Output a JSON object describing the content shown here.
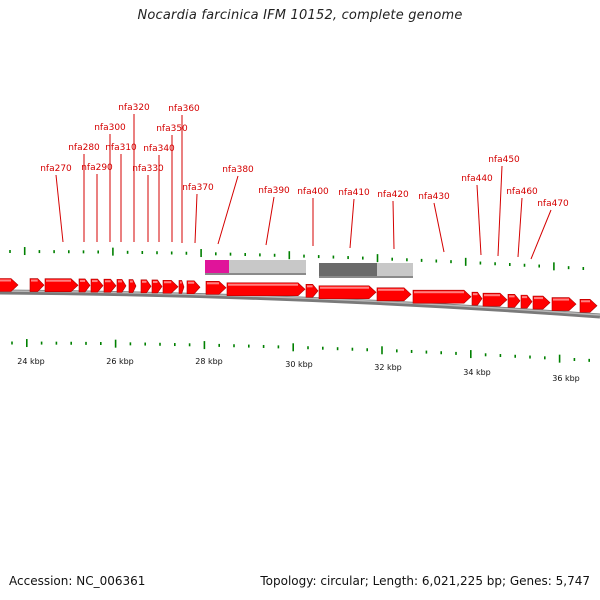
{
  "title": "Nocardia farcinica IFM 10152, complete genome",
  "footer": {
    "accession": "Accession: NC_006361",
    "info": "Topology: circular; Length: 6,021,225 bp; Genes: 5,747"
  },
  "colors": {
    "gene": "#ff0000",
    "label": "#d40000",
    "tick": "#008000",
    "backbone": "#8c8c8c",
    "feature_magenta": "#e0149a",
    "feature_dark": "#6a6a6a",
    "feature_light": "#c8c8c8"
  },
  "scale_labels": [
    "24 kbp",
    "26 kbp",
    "28 kbp",
    "30 kbp",
    "32 kbp",
    "34 kbp",
    "36 kbp"
  ],
  "gene_labels": [
    "nfa270",
    "nfa280",
    "nfa290",
    "nfa300",
    "nfa310",
    "nfa320",
    "nfa330",
    "nfa340",
    "nfa350",
    "nfa360",
    "nfa370",
    "nfa380",
    "nfa390",
    "nfa400",
    "nfa410",
    "nfa420",
    "nfa430",
    "nfa440",
    "nfa450",
    "nfa460",
    "nfa470"
  ]
}
